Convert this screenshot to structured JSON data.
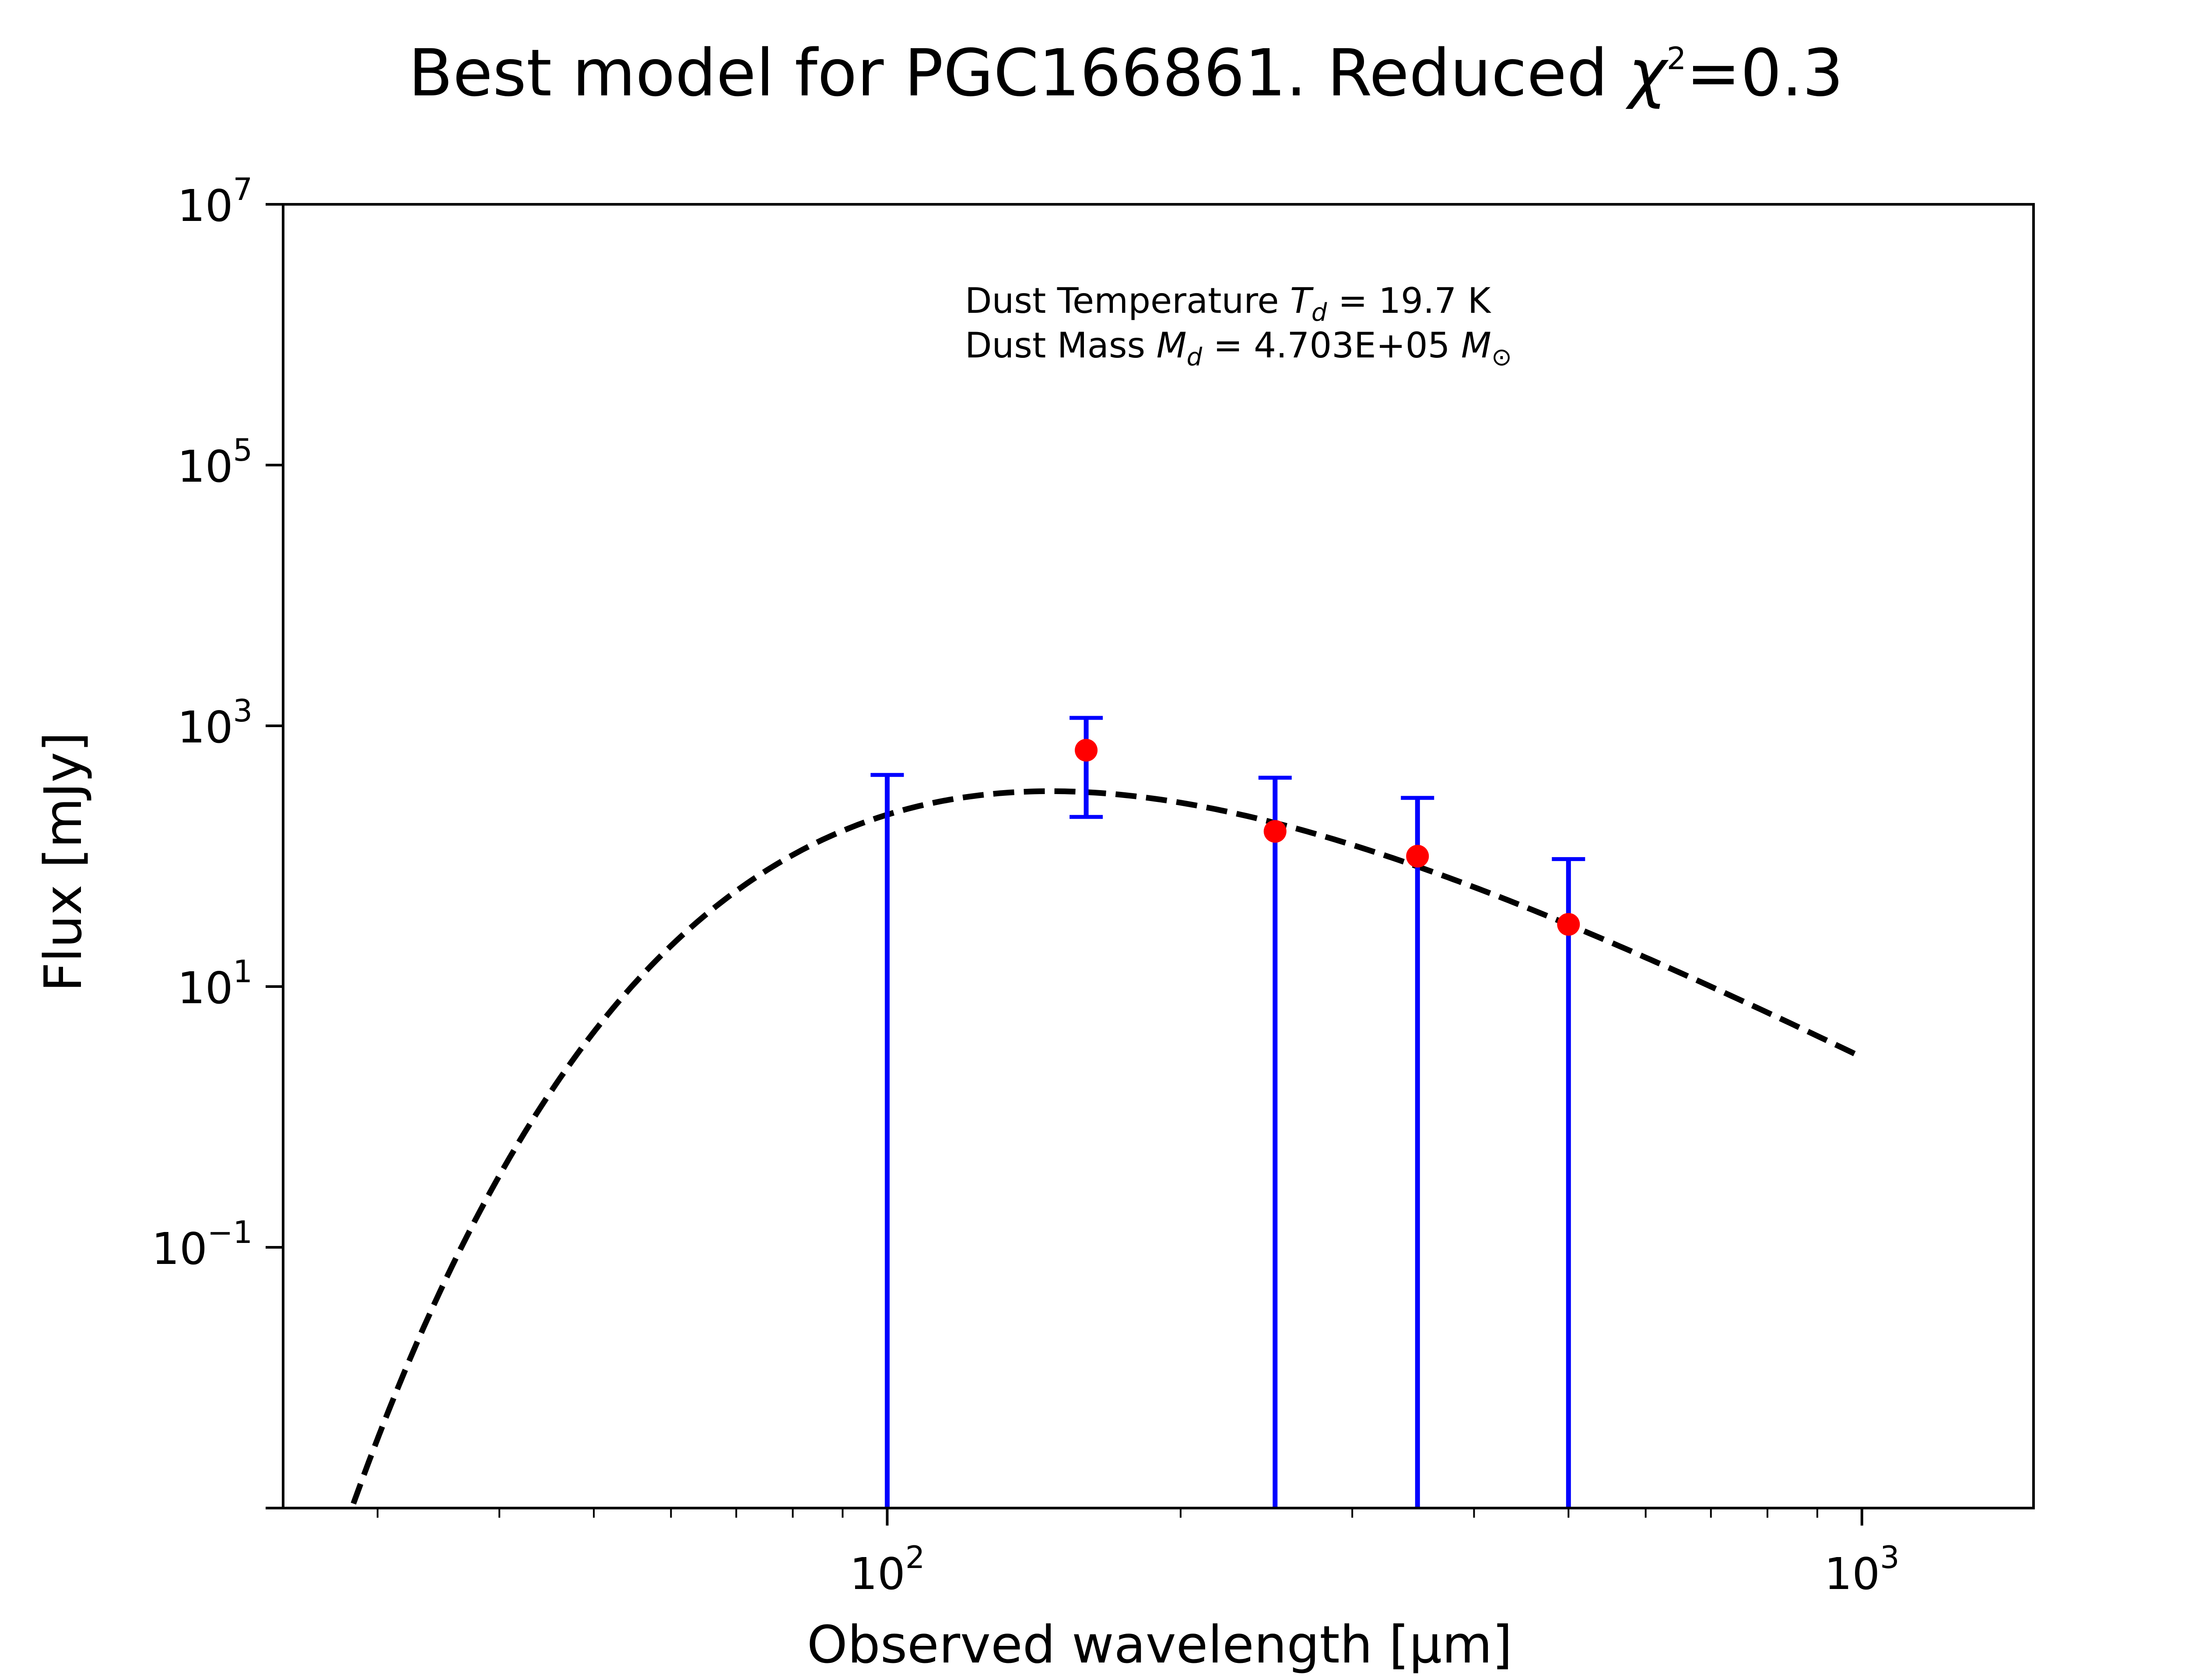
{
  "title": "Best model for PGC166861. Reduced",
  "title_symbol": "χ",
  "title_exponent": "2",
  "title_value": "=0.3",
  "annotation": {
    "line1_prefix": "Dust Temperature ",
    "line1_symbol": "T",
    "line1_subscript": "d",
    "line1_value": " = 19.7 K",
    "line2_prefix": "Dust Mass ",
    "line2_symbol": "M",
    "line2_subscript": "d",
    "line2_value": " = 4.703E+05 ",
    "line2_unit": "M",
    "line2_unit_sub": "⊙"
  },
  "xlabel": "Observed wavelength [μm]",
  "ylabel": "Flux [mJy]",
  "chart_data": {
    "type": "scatter",
    "title": "Best model for PGC166861. Reduced χ²=0.3",
    "xlabel": "Observed wavelength [μm]",
    "ylabel": "Flux [mJy]",
    "xscale": "log",
    "yscale": "log",
    "xlim": [
      24,
      1500
    ],
    "ylim": [
      0.001,
      10000000
    ],
    "grid": false,
    "x_ticks": [
      {
        "value": 100,
        "base": "10",
        "exp": "2"
      },
      {
        "value": 1000,
        "base": "10",
        "exp": "3"
      }
    ],
    "y_ticks": [
      {
        "value": 0.1,
        "base": "10",
        "exp": "−1"
      },
      {
        "value": 10,
        "base": "10",
        "exp": "1"
      },
      {
        "value": 1000,
        "base": "10",
        "exp": "3"
      },
      {
        "value": 100000,
        "base": "10",
        "exp": "5"
      },
      {
        "value": 10000000,
        "base": "10",
        "exp": "7"
      }
    ],
    "series": [
      {
        "kind": "model",
        "style": "dashed",
        "color": "#000000",
        "temperature_K": 19.7,
        "x_range": [
          28,
          1000
        ],
        "peak": {
          "x": 160,
          "y": 310
        }
      },
      {
        "kind": "observed",
        "marker_color": "#ff0000",
        "errorbar_color": "#0000ff",
        "points": [
          {
            "x": 160,
            "y": 650,
            "yerr_low": 200,
            "yerr_high": 1150
          },
          {
            "x": 250,
            "y": 155,
            "yerr_low": 0.001,
            "yerr_high": 400
          },
          {
            "x": 350,
            "y": 100,
            "yerr_low": 0.001,
            "yerr_high": 280
          },
          {
            "x": 500,
            "y": 30,
            "yerr_low": 0.001,
            "yerr_high": 95
          }
        ],
        "upper_limits": [
          {
            "x": 100,
            "yerr_low": 0.001,
            "yerr_high": 420
          }
        ]
      }
    ]
  }
}
